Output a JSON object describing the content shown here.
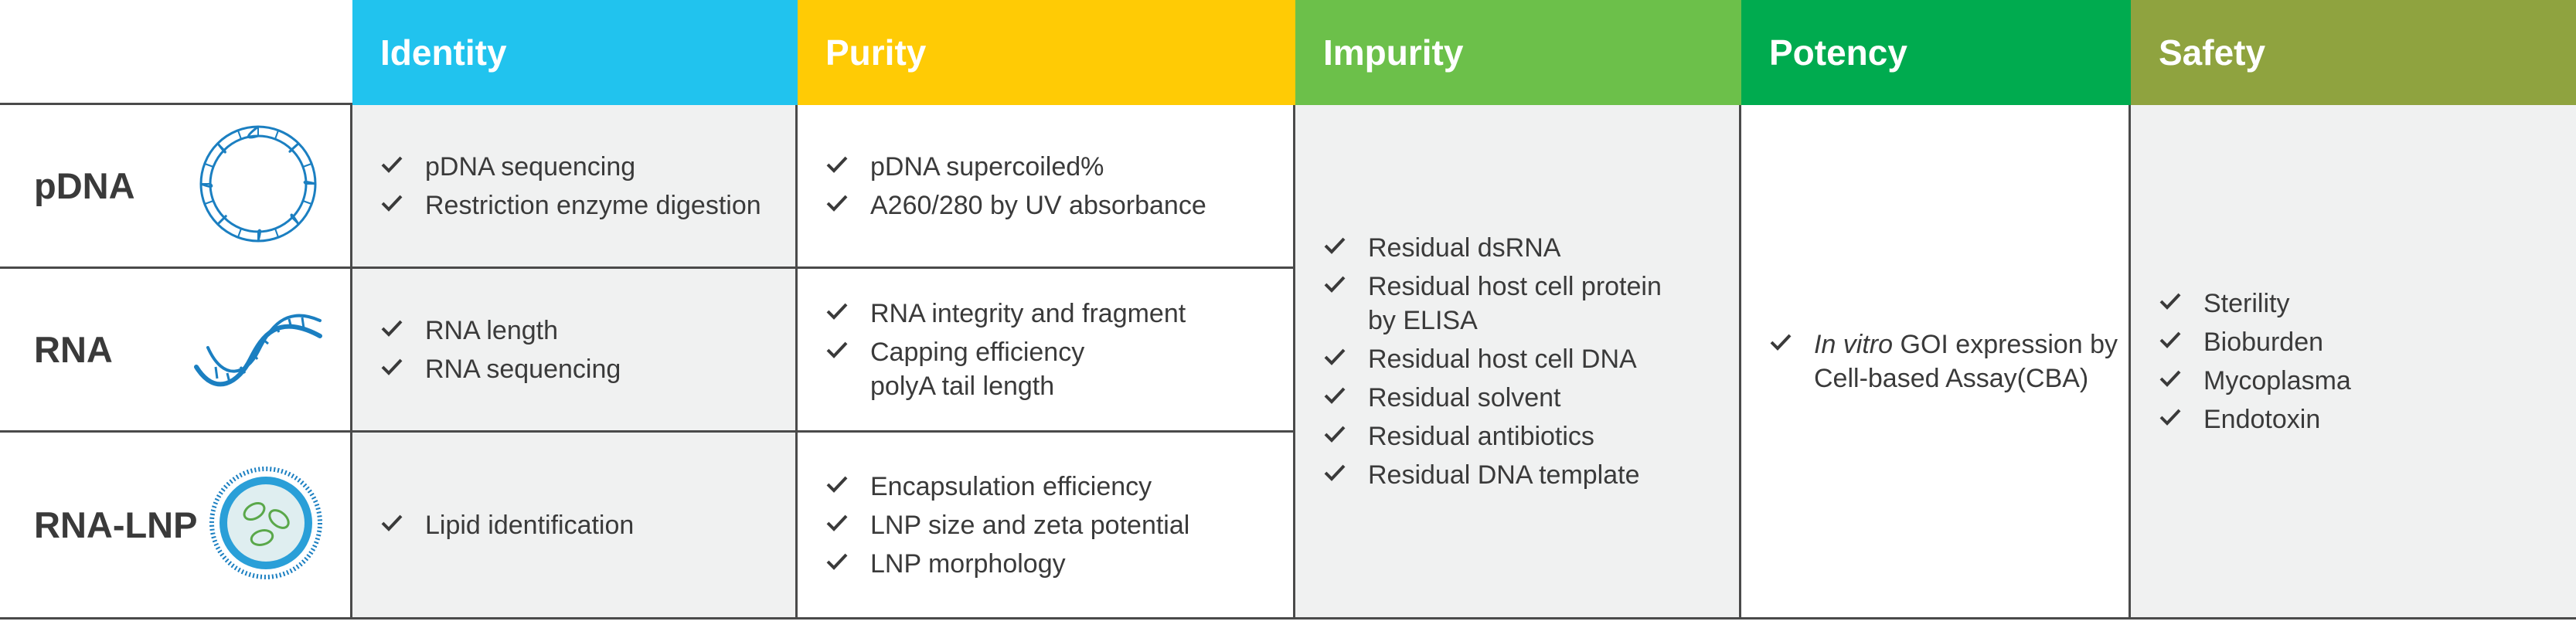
{
  "headers": {
    "identity": "Identity",
    "purity": "Purity",
    "impurity": "Impurity",
    "potency": "Potency",
    "safety": "Safety"
  },
  "header_colors": {
    "identity": "#21c3ee",
    "purity": "#ffcb05",
    "impurity": "#6cc04a",
    "potency": "#00ab4f",
    "safety": "#8fa33f"
  },
  "rows": {
    "pdna": {
      "label": "pDNA",
      "icon": "circular-dna-icon",
      "identity": [
        "pDNA sequencing",
        "Restriction enzyme digestion"
      ],
      "purity": [
        "pDNA supercoiled%",
        "A260/280 by UV absorbance"
      ]
    },
    "rna": {
      "label": "RNA",
      "icon": "rna-strand-icon",
      "identity": [
        "RNA length",
        "RNA sequencing"
      ],
      "purity": [
        "RNA integrity and fragment",
        "Capping efficiency",
        "polyA tail length"
      ]
    },
    "rna_lnp": {
      "label": "RNA-LNP",
      "icon": "lipid-nanoparticle-icon",
      "identity": [
        "Lipid identification"
      ],
      "purity": [
        "Encapsulation efficiency",
        "LNP size and zeta potential",
        "LNP morphology"
      ]
    }
  },
  "impurity": [
    "Residual dsRNA",
    "Residual host cell protein",
    "by ELISA",
    "Residual host cell DNA",
    "Residual solvent",
    "Residual antibiotics",
    "Residual DNA template"
  ],
  "potency": {
    "italic": "In vitro",
    "rest": " GOI expression by",
    "line2": "Cell-based Assay(CBA)"
  },
  "safety": [
    "Sterility",
    "Bioburden",
    "Mycoplasma",
    "Endotoxin"
  ],
  "check_color": "#3a3a3a",
  "icon_color": "#1b7fc1"
}
